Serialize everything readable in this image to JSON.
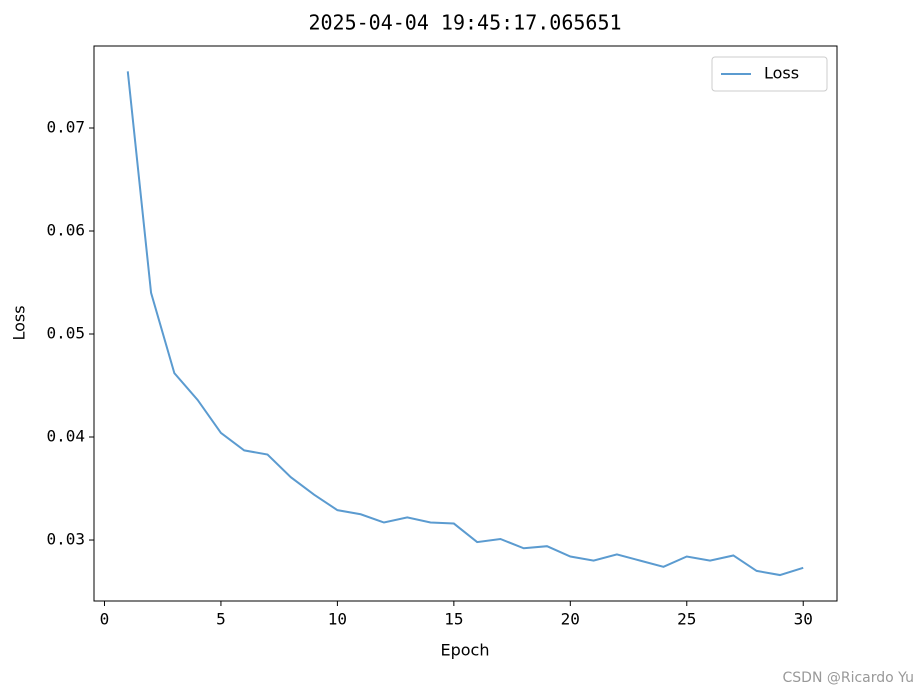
{
  "chart_data": {
    "type": "line",
    "title": "2025-04-04 19:45:17.065651",
    "x_label": "Epoch",
    "y_label": "Loss",
    "x": [
      1,
      2,
      3,
      4,
      5,
      6,
      7,
      8,
      9,
      10,
      11,
      12,
      13,
      14,
      15,
      16,
      17,
      18,
      19,
      20,
      21,
      22,
      23,
      24,
      25,
      26,
      27,
      28,
      29,
      30
    ],
    "series": [
      {
        "name": "Loss",
        "color": "#5b9bd0",
        "values": [
          0.0755,
          0.054,
          0.0462,
          0.0436,
          0.0404,
          0.0387,
          0.0383,
          0.0361,
          0.0344,
          0.0329,
          0.0325,
          0.0317,
          0.0322,
          0.0317,
          0.0316,
          0.0298,
          0.0301,
          0.0292,
          0.0294,
          0.0284,
          0.028,
          0.0286,
          0.028,
          0.0274,
          0.0284,
          0.028,
          0.0285,
          0.027,
          0.0266,
          0.0273
        ]
      }
    ],
    "xlim": [
      -0.45,
      31.45
    ],
    "xticks": [
      0,
      5,
      10,
      15,
      20,
      25,
      30
    ],
    "ylim": [
      0.02408,
      0.07796
    ],
    "yticks": [
      0.03,
      0.04,
      0.05,
      0.06,
      0.07
    ],
    "legend": "upper right",
    "grid": false
  },
  "watermark": "CSDN @Ricardo  Yu"
}
